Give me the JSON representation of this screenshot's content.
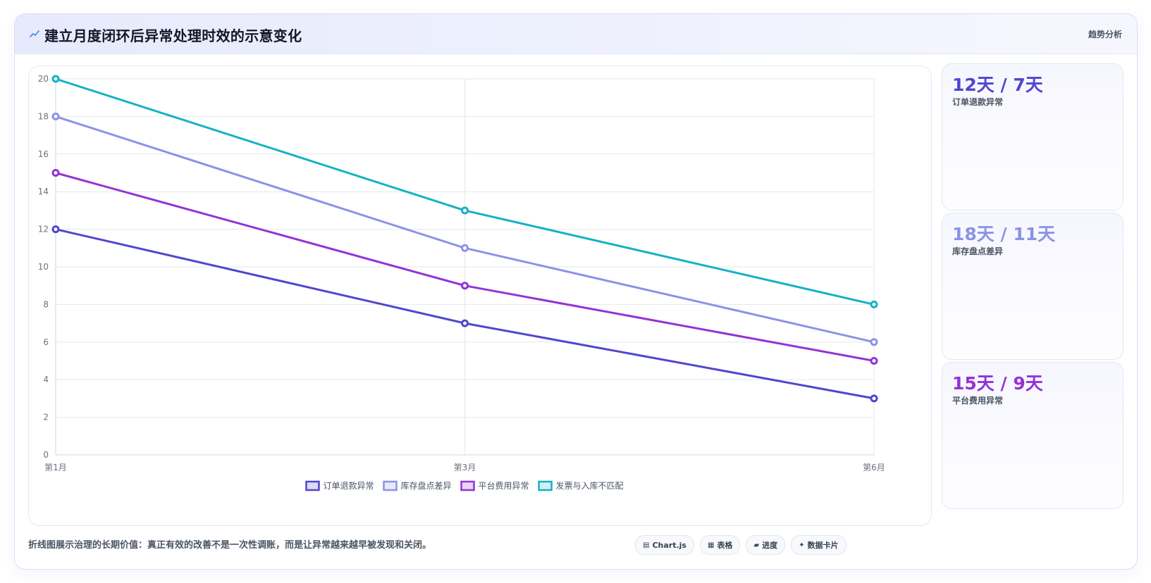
{
  "header": {
    "title": "建立月度闭环后异常处理时效的示意变化",
    "tag": "趋势分析"
  },
  "chart_data": {
    "type": "line",
    "categories": [
      "第1月",
      "第3月",
      "第6月"
    ],
    "series": [
      {
        "name": "订单退款异常",
        "values": [
          12,
          7,
          3
        ],
        "color": "#5046cf"
      },
      {
        "name": "库存盘点差异",
        "values": [
          18,
          11,
          6
        ],
        "color": "#8b93e6"
      },
      {
        "name": "平台费用异常",
        "values": [
          15,
          9,
          5
        ],
        "color": "#9333d6"
      },
      {
        "name": "发票与入库不匹配",
        "values": [
          20,
          13,
          8
        ],
        "color": "#14b2c4"
      }
    ],
    "ylim": [
      0,
      20
    ],
    "yticks": [
      0,
      2,
      4,
      6,
      8,
      10,
      12,
      14,
      16,
      18,
      20
    ],
    "grid": true,
    "legend": "bottom-center"
  },
  "stats": [
    {
      "value": "12天 / 7天",
      "label": "订单退款异常",
      "color": "#5046cf"
    },
    {
      "value": "18天 / 11天",
      "label": "库存盘点差异",
      "color": "#8b93e6"
    },
    {
      "value": "15天 / 9天",
      "label": "平台费用异常",
      "color": "#9333d6"
    }
  ],
  "footer": {
    "note": "折线图展示治理的长期价值：真正有效的改善不是一次性调账，而是让异常越来越早被发现和关闭。",
    "chips": [
      {
        "icon": "chart-icon",
        "glyph": "▤",
        "label": "Chart.js"
      },
      {
        "icon": "table-icon",
        "glyph": "▦",
        "label": "表格"
      },
      {
        "icon": "progress-icon",
        "glyph": "▰",
        "label": "进度"
      },
      {
        "icon": "data-card-icon",
        "glyph": "✦",
        "label": "数据卡片"
      }
    ]
  }
}
